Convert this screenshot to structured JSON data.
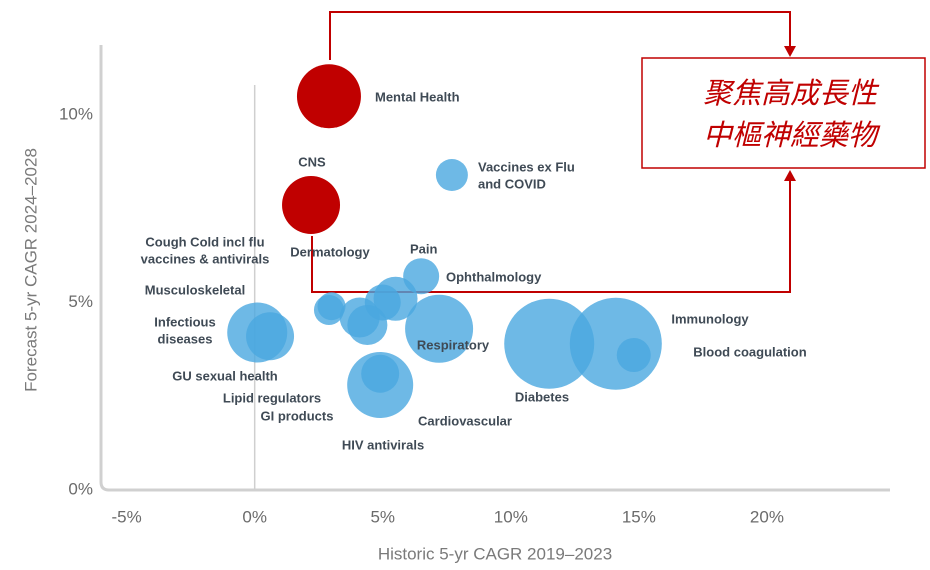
{
  "chart_data": {
    "type": "bubble",
    "xlabel": "Historic 5-yr CAGR 2019–2023",
    "ylabel": "Forecast 5-yr CAGR 2024–2028",
    "xlim": [
      -6,
      25
    ],
    "ylim": [
      0,
      12
    ],
    "xticks": [
      {
        "value": -5,
        "label": "-5%"
      },
      {
        "value": 0,
        "label": "0%"
      },
      {
        "value": 5,
        "label": "5%"
      },
      {
        "value": 10,
        "label": "10%"
      },
      {
        "value": 15,
        "label": "15%"
      },
      {
        "value": 20,
        "label": "20%"
      }
    ],
    "yticks": [
      {
        "value": 0,
        "label": "0%"
      },
      {
        "value": 5,
        "label": "5%"
      },
      {
        "value": 10,
        "label": "10%"
      }
    ],
    "categories": [
      [
        "Mental Health"
      ],
      [
        "CNS"
      ],
      [
        "Vaccines ex Flu",
        "and COVID"
      ],
      [
        "Ophthalmology"
      ],
      [
        "Pain"
      ],
      [
        "Dermatology"
      ],
      [
        "Cough Cold incl flu",
        "vaccines & antivirals"
      ],
      [
        "Musculoskeletal"
      ],
      [
        "Infectious",
        "diseases"
      ],
      [
        "GU sexual health"
      ],
      [
        "Lipid regulators"
      ],
      [
        "GI products"
      ],
      [
        "Respiratory"
      ],
      [
        "Cardiovascular"
      ],
      [
        "HIV antivirals"
      ],
      [
        "Diabetes"
      ],
      [
        "Immunology"
      ],
      [
        "Blood coagulation"
      ]
    ],
    "x": [
      2.9,
      2.2,
      7.7,
      6.5,
      5.5,
      5.0,
      3.0,
      2.9,
      0.1,
      0.6,
      4.1,
      4.4,
      7.2,
      4.9,
      4.9,
      11.5,
      14.1,
      14.8
    ],
    "values": [
      10.5,
      7.6,
      8.4,
      5.7,
      5.1,
      5.0,
      4.9,
      4.8,
      4.2,
      4.1,
      4.6,
      4.4,
      4.3,
      2.8,
      3.1,
      3.9,
      3.9,
      3.6
    ],
    "sizes": [
      32,
      29,
      16,
      18,
      22,
      18,
      14,
      15,
      30,
      24,
      20,
      20,
      34,
      33,
      19,
      45,
      46,
      17
    ],
    "colors": [
      "#c00000",
      "#c00000",
      "#4aa8e0",
      "#4aa8e0",
      "#4aa8e0",
      "#4aa8e0",
      "#4aa8e0",
      "#4aa8e0",
      "#4aa8e0",
      "#4aa8e0",
      "#4aa8e0",
      "#4aa8e0",
      "#4aa8e0",
      "#4aa8e0",
      "#4aa8e0",
      "#4aa8e0",
      "#4aa8e0",
      "#4aa8e0"
    ],
    "annotation": [
      "聚焦高成長性",
      "中樞神經藥物"
    ]
  }
}
